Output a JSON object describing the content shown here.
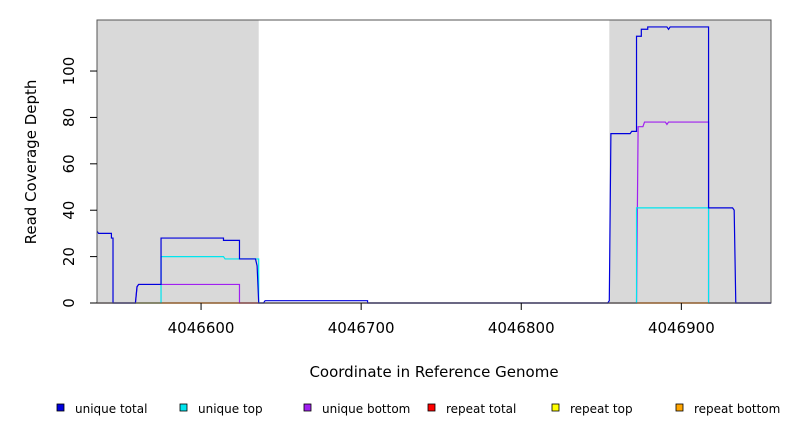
{
  "chart_data": {
    "type": "line",
    "xlabel": "Coordinate in Reference Genome",
    "ylabel": "Read Coverage Depth",
    "xlim": [
      4046535,
      4046956
    ],
    "ylim": [
      0,
      122
    ],
    "x_ticks": [
      4046600,
      4046700,
      4046800,
      4046900
    ],
    "x_tick_labels": [
      "4046600",
      "4046700",
      "4046800",
      "4046900"
    ],
    "y_ticks": [
      0,
      20,
      40,
      60,
      80,
      100
    ],
    "y_tick_labels": [
      "0",
      "20",
      "40",
      "60",
      "80",
      "100"
    ],
    "shaded_regions": [
      [
        4046535,
        4046636
      ],
      [
        4046855,
        4046956
      ]
    ],
    "shaded_color": "#d9d9d9",
    "grid": false,
    "legend_position": "bottom",
    "series": [
      {
        "name": "unique total",
        "color": "#0000dd",
        "points": [
          [
            4046535,
            31
          ],
          [
            4046536,
            30
          ],
          [
            4046544,
            30
          ],
          [
            4046544,
            28
          ],
          [
            4046545,
            28
          ],
          [
            4046545,
            0
          ],
          [
            4046559,
            0
          ],
          [
            4046560,
            7
          ],
          [
            4046561,
            8
          ],
          [
            4046575,
            8
          ],
          [
            4046575,
            28
          ],
          [
            4046614,
            28
          ],
          [
            4046614,
            27
          ],
          [
            4046624,
            27
          ],
          [
            4046624,
            19
          ],
          [
            4046634,
            19
          ],
          [
            4046635,
            16
          ],
          [
            4046636,
            0
          ],
          [
            4046639,
            0
          ],
          [
            4046640,
            1
          ],
          [
            4046704,
            1
          ],
          [
            4046704,
            0
          ],
          [
            4046854,
            0
          ],
          [
            4046855,
            1
          ],
          [
            4046856,
            73
          ],
          [
            4046868,
            73
          ],
          [
            4046869,
            74
          ],
          [
            4046872,
            74
          ],
          [
            4046872,
            115
          ],
          [
            4046875,
            115
          ],
          [
            4046875,
            118
          ],
          [
            4046879,
            118
          ],
          [
            4046879,
            119
          ],
          [
            4046891,
            119
          ],
          [
            4046892,
            118
          ],
          [
            4046893,
            119
          ],
          [
            4046917,
            119
          ],
          [
            4046917,
            41
          ],
          [
            4046932,
            41
          ],
          [
            4046933,
            40
          ],
          [
            4046934,
            0
          ],
          [
            4046956,
            0
          ]
        ]
      },
      {
        "name": "unique top",
        "color": "#00e5ee",
        "points": [
          [
            4046535,
            0
          ],
          [
            4046575,
            0
          ],
          [
            4046575,
            20
          ],
          [
            4046614,
            20
          ],
          [
            4046615,
            19
          ],
          [
            4046636,
            19
          ],
          [
            4046636,
            0
          ],
          [
            4046872,
            0
          ],
          [
            4046872,
            41
          ],
          [
            4046917,
            41
          ],
          [
            4046917,
            0
          ],
          [
            4046956,
            0
          ]
        ]
      },
      {
        "name": "unique bottom",
        "color": "#a020f0",
        "points": [
          [
            4046535,
            0
          ],
          [
            4046559,
            0
          ],
          [
            4046560,
            7
          ],
          [
            4046561,
            8
          ],
          [
            4046624,
            8
          ],
          [
            4046624,
            0
          ],
          [
            4046872,
            0
          ],
          [
            4046873,
            76
          ],
          [
            4046876,
            76
          ],
          [
            4046877,
            78
          ],
          [
            4046890,
            78
          ],
          [
            4046891,
            77
          ],
          [
            4046892,
            78
          ],
          [
            4046917,
            78
          ],
          [
            4046917,
            0
          ],
          [
            4046956,
            0
          ]
        ]
      },
      {
        "name": "repeat total",
        "color": "#ff0000",
        "points": [
          [
            4046535,
            0
          ],
          [
            4046956,
            0
          ]
        ]
      },
      {
        "name": "repeat top",
        "color": "#ffff00",
        "points": [
          [
            4046535,
            0
          ],
          [
            4046956,
            0
          ]
        ]
      },
      {
        "name": "repeat bottom",
        "color": "#ffa500",
        "points": [
          [
            4046535,
            0
          ],
          [
            4046956,
            0
          ]
        ]
      }
    ]
  }
}
